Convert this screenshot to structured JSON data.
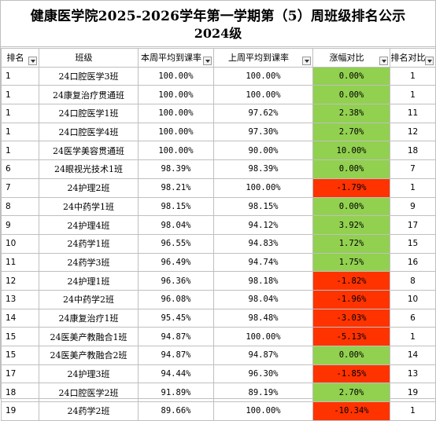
{
  "title_line1": "健康医学院2025-2026学年第一学期第（5）周班级排名公示",
  "title_line2": "2024级",
  "headers": {
    "rank": "排名",
    "class": "班级",
    "this_week": "本周平均到课率",
    "last_week": "上周平均到课率",
    "change": "涨幅对比",
    "rank_compare": "排名对比"
  },
  "colors": {
    "increase": "#92d050",
    "decrease": "#ff3300",
    "grid": "#bfbfbf"
  },
  "rows": [
    {
      "rank": "1",
      "class": "24口腔医学3班",
      "this_week": "100.00%",
      "last_week": "100.00%",
      "change": "0.00%",
      "trend": "up",
      "rank_compare": "1"
    },
    {
      "rank": "1",
      "class": "24康复治疗贯通班",
      "this_week": "100.00%",
      "last_week": "100.00%",
      "change": "0.00%",
      "trend": "up",
      "rank_compare": "1"
    },
    {
      "rank": "1",
      "class": "24口腔医学1班",
      "this_week": "100.00%",
      "last_week": "97.62%",
      "change": "2.38%",
      "trend": "up",
      "rank_compare": "11"
    },
    {
      "rank": "1",
      "class": "24口腔医学4班",
      "this_week": "100.00%",
      "last_week": "97.30%",
      "change": "2.70%",
      "trend": "up",
      "rank_compare": "12"
    },
    {
      "rank": "1",
      "class": "24医学美容贯通班",
      "this_week": "100.00%",
      "last_week": "90.00%",
      "change": "10.00%",
      "trend": "up",
      "rank_compare": "18"
    },
    {
      "rank": "6",
      "class": "24眼视光技术1班",
      "this_week": "98.39%",
      "last_week": "98.39%",
      "change": "0.00%",
      "trend": "up",
      "rank_compare": "7"
    },
    {
      "rank": "7",
      "class": "24护理2班",
      "this_week": "98.21%",
      "last_week": "100.00%",
      "change": "-1.79%",
      "trend": "down",
      "rank_compare": "1"
    },
    {
      "rank": "8",
      "class": "24中药学1班",
      "this_week": "98.15%",
      "last_week": "98.15%",
      "change": "0.00%",
      "trend": "up",
      "rank_compare": "9"
    },
    {
      "rank": "9",
      "class": "24护理4班",
      "this_week": "98.04%",
      "last_week": "94.12%",
      "change": "3.92%",
      "trend": "up",
      "rank_compare": "17"
    },
    {
      "rank": "10",
      "class": "24药学1班",
      "this_week": "96.55%",
      "last_week": "94.83%",
      "change": "1.72%",
      "trend": "up",
      "rank_compare": "15"
    },
    {
      "rank": "11",
      "class": "24药学3班",
      "this_week": "96.49%",
      "last_week": "94.74%",
      "change": "1.75%",
      "trend": "up",
      "rank_compare": "16"
    },
    {
      "rank": "12",
      "class": "24护理1班",
      "this_week": "96.36%",
      "last_week": "98.18%",
      "change": "-1.82%",
      "trend": "down",
      "rank_compare": "8"
    },
    {
      "rank": "13",
      "class": "24中药学2班",
      "this_week": "96.08%",
      "last_week": "98.04%",
      "change": "-1.96%",
      "trend": "down",
      "rank_compare": "10"
    },
    {
      "rank": "14",
      "class": "24康复治疗1班",
      "this_week": "95.45%",
      "last_week": "98.48%",
      "change": "-3.03%",
      "trend": "down",
      "rank_compare": "6"
    },
    {
      "rank": "15",
      "class": "24医美产教融合1班",
      "this_week": "94.87%",
      "last_week": "100.00%",
      "change": "-5.13%",
      "trend": "down",
      "rank_compare": "1"
    },
    {
      "rank": "15",
      "class": "24医美产教融合2班",
      "this_week": "94.87%",
      "last_week": "94.87%",
      "change": "0.00%",
      "trend": "up",
      "rank_compare": "14"
    },
    {
      "rank": "17",
      "class": "24护理3班",
      "this_week": "94.44%",
      "last_week": "96.30%",
      "change": "-1.85%",
      "trend": "down",
      "rank_compare": "13"
    },
    {
      "rank": "18",
      "class": "24口腔医学2班",
      "this_week": "91.89%",
      "last_week": "89.19%",
      "change": "2.70%",
      "trend": "up",
      "rank_compare": "19"
    },
    {
      "rank": "19",
      "class": "24药学2班",
      "this_week": "89.66%",
      "last_week": "100.00%",
      "change": "-10.34%",
      "trend": "down",
      "rank_compare": "1"
    }
  ]
}
